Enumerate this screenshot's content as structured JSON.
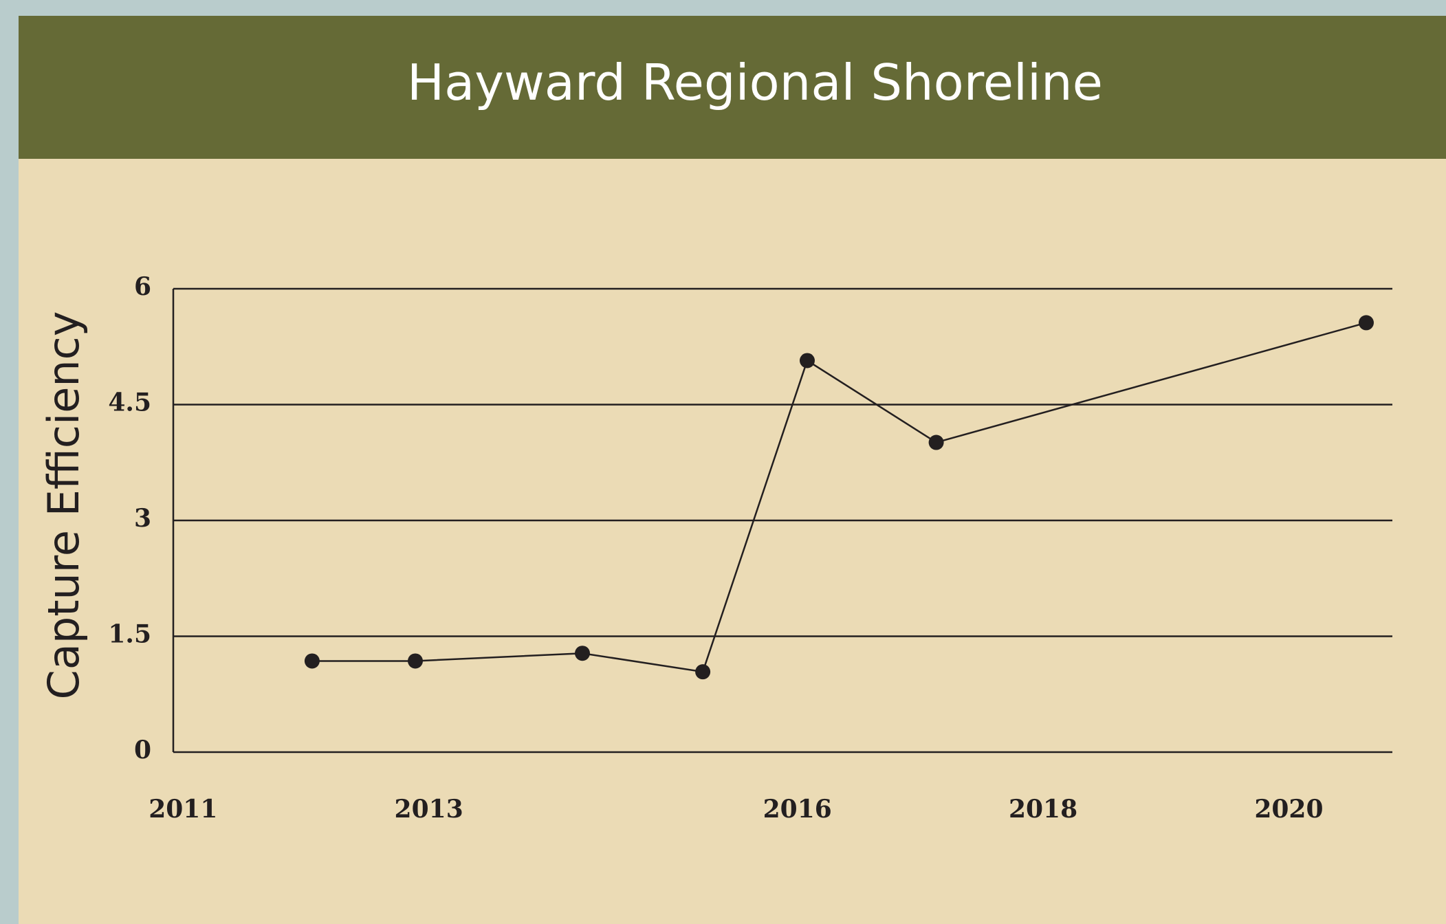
{
  "chart_data": {
    "type": "line",
    "title": "Hayward Regional Shoreline",
    "y_label": "Capture Efficiency",
    "x": [
      2012.05,
      2012.89,
      2014.25,
      2015.23,
      2016.08,
      2017.13,
      2020.63
    ],
    "series": [
      {
        "name": "Capture Efficiency",
        "color": "#231f20",
        "values": [
          1.18,
          1.18,
          1.28,
          1.04,
          5.07,
          4.01,
          5.56
        ]
      }
    ],
    "xlim": [
      2010.92,
      2020.77
    ],
    "xticks": [
      2011,
      2013,
      2016,
      2018,
      2020
    ],
    "ylim": [
      0,
      6
    ],
    "yticks": [
      0,
      1.5,
      3,
      4.5,
      6
    ],
    "grid": true
  }
}
